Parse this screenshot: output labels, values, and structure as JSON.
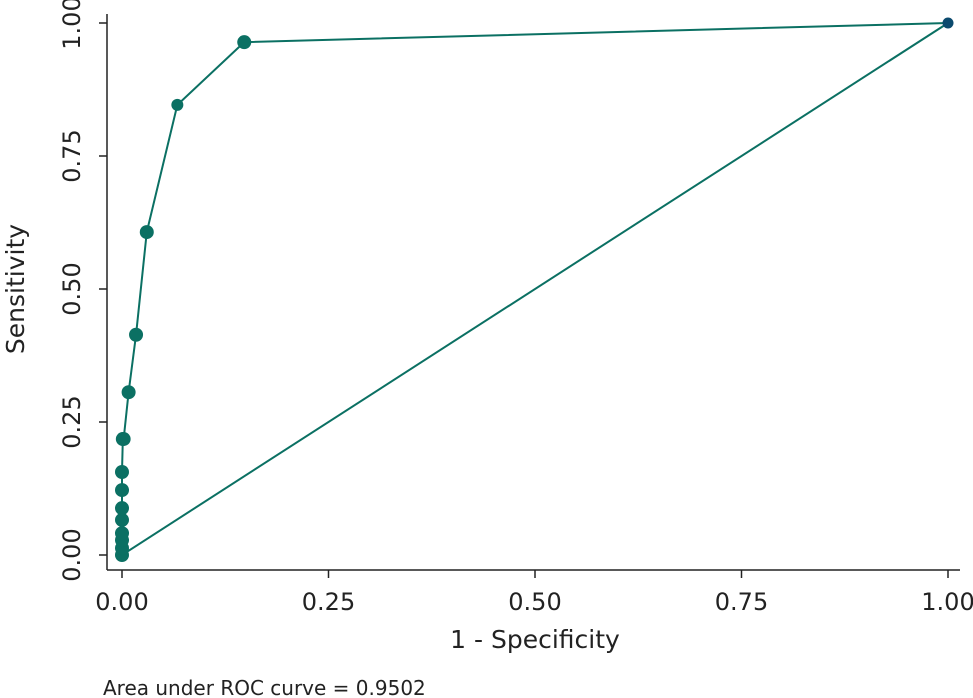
{
  "chart_data": {
    "type": "line",
    "title": "",
    "xlabel": "1 - Specificity",
    "ylabel": "Sensitivity",
    "xlim": [
      0,
      1
    ],
    "ylim": [
      0,
      1
    ],
    "xticks": [
      "0.00",
      "0.25",
      "0.50",
      "0.75",
      "1.00"
    ],
    "yticks": [
      "0.00",
      "0.25",
      "0.50",
      "0.75",
      "1.00"
    ],
    "series": [
      {
        "name": "ROC curve",
        "color": "#0b7063",
        "x": [
          0,
          0,
          0,
          0,
          0,
          0,
          0,
          0,
          0.001,
          0.002,
          0.008,
          0.017,
          0.03,
          0.067,
          0.148,
          1
        ],
        "y": [
          0,
          0.013,
          0.028,
          0.041,
          0.066,
          0.088,
          0.122,
          0.156,
          0.218,
          0.218,
          0.306,
          0.414,
          0.607,
          0.846,
          0.964,
          1
        ]
      },
      {
        "name": "Reference line",
        "color": "#0b7063",
        "x": [
          0,
          1
        ],
        "y": [
          0,
          1
        ]
      }
    ],
    "grid": false,
    "annotation": "Area under ROC curve = 0.9502"
  }
}
